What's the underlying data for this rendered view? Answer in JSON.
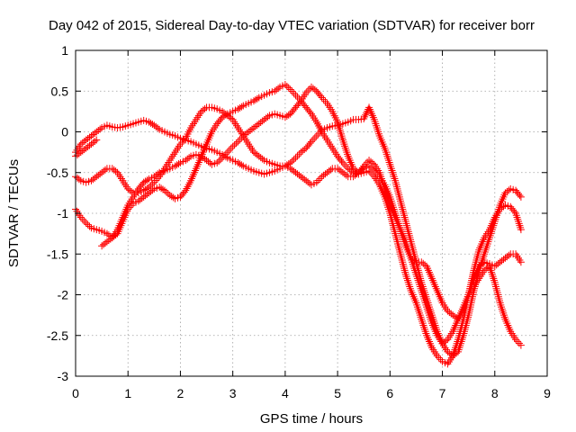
{
  "chart_data": {
    "type": "scatter",
    "title": "Day 042 of 2015, Sidereal Day-to-day VTEC variation (SDTVAR) for receiver borr",
    "xlabel": "GPS time / hours",
    "ylabel": "SDTVAR / TECUs",
    "xlim": [
      0,
      9
    ],
    "ylim": [
      -3,
      1
    ],
    "xticks": [
      "0",
      "1",
      "2",
      "3",
      "4",
      "5",
      "6",
      "7",
      "8",
      "9"
    ],
    "yticks": [
      "1",
      "0.5",
      "0",
      "-0.5",
      "-1",
      "-1.5",
      "-2",
      "-2.5",
      "-3"
    ],
    "grid": true,
    "marker": "+",
    "marker_color": "#ff0000",
    "series": [
      {
        "x": [
          0.0,
          0.1,
          0.2,
          0.3,
          0.4,
          0.5,
          0.6,
          0.7,
          0.8,
          0.9,
          1.0,
          1.1,
          1.2,
          1.3,
          1.4,
          1.5,
          1.6,
          1.7,
          1.8,
          1.9,
          2.0,
          2.1,
          2.2,
          2.3,
          2.4,
          2.5,
          2.6,
          2.7,
          2.8,
          2.9,
          3.0,
          3.1,
          3.2,
          3.3,
          3.4,
          3.5,
          3.6,
          3.7,
          3.8,
          3.9,
          4.0,
          4.1,
          4.2,
          4.3,
          4.4,
          4.5,
          4.6,
          4.7,
          4.8,
          4.9,
          5.0,
          5.1,
          5.2,
          5.3,
          5.4,
          5.5,
          5.6,
          5.7,
          5.8,
          5.9,
          6.0,
          6.1,
          6.2,
          6.3,
          6.4,
          6.5,
          6.6,
          6.7,
          6.8,
          6.9,
          7.0,
          7.1,
          7.2,
          7.3,
          7.4,
          7.5,
          7.6,
          7.7,
          7.8,
          7.9,
          8.0,
          8.1,
          8.2,
          8.3,
          8.4,
          8.5
        ],
        "y": [
          -0.25,
          -0.15,
          -0.1,
          -0.05,
          0.0,
          0.05,
          0.08,
          0.06,
          0.05,
          0.06,
          0.08,
          0.1,
          0.12,
          0.14,
          0.12,
          0.08,
          0.03,
          0.0,
          -0.03,
          -0.05,
          -0.08,
          -0.1,
          -0.12,
          -0.15,
          -0.18,
          -0.2,
          -0.22,
          -0.25,
          -0.28,
          -0.32,
          -0.35,
          -0.38,
          -0.42,
          -0.45,
          -0.48,
          -0.5,
          -0.52,
          -0.5,
          -0.48,
          -0.45,
          -0.42,
          -0.45,
          -0.5,
          -0.55,
          -0.6,
          -0.65,
          -0.62,
          -0.55,
          -0.5,
          -0.45,
          -0.45,
          -0.5,
          -0.55,
          -0.55,
          -0.5,
          -0.45,
          -0.42,
          -0.48,
          -0.55,
          -0.65,
          -0.8,
          -1.0,
          -1.2,
          -1.4,
          -1.55,
          -1.6,
          -1.6,
          -1.65,
          -1.8,
          -1.95,
          -2.1,
          -2.2,
          -2.25,
          -2.3,
          -2.2,
          -2.0,
          -1.8,
          -1.65,
          -1.6,
          -1.62,
          -1.65,
          -1.6,
          -1.55,
          -1.5,
          -1.5,
          -1.6
        ]
      },
      {
        "x": [
          0.0,
          0.1,
          0.2,
          0.3,
          0.4,
          0.5,
          0.6,
          0.7,
          0.8,
          0.9,
          1.0,
          1.1,
          1.2,
          1.3,
          1.4,
          1.5,
          1.6,
          1.7,
          1.8,
          1.9,
          2.0,
          2.1,
          2.2,
          2.3,
          2.4,
          2.5,
          2.6,
          2.7,
          2.8,
          2.9,
          3.0,
          3.1,
          3.2,
          3.3,
          3.4,
          3.5,
          3.6,
          3.7,
          3.8,
          3.9,
          4.0,
          4.1,
          4.2,
          4.3,
          4.4,
          4.5,
          4.6,
          4.7,
          4.8,
          4.9,
          5.0,
          5.1,
          5.2,
          5.3,
          5.4,
          5.5,
          5.6,
          5.7,
          5.8,
          5.9,
          6.0,
          6.1,
          6.2,
          6.3,
          6.4,
          6.5,
          6.6,
          6.7,
          6.8,
          6.9,
          7.0,
          7.1,
          7.2,
          7.3,
          7.4,
          7.5,
          7.6,
          7.7,
          7.8,
          7.9,
          8.0,
          8.1,
          8.2,
          8.3,
          8.4,
          8.5
        ],
        "y": [
          -0.95,
          -1.05,
          -1.12,
          -1.18,
          -1.2,
          -1.22,
          -1.25,
          -1.3,
          -1.25,
          -1.1,
          -0.95,
          -0.88,
          -0.85,
          -0.8,
          -0.75,
          -0.7,
          -0.68,
          -0.72,
          -0.78,
          -0.82,
          -0.8,
          -0.72,
          -0.6,
          -0.45,
          -0.3,
          -0.15,
          0.0,
          0.1,
          0.18,
          0.22,
          0.25,
          0.28,
          0.32,
          0.35,
          0.38,
          0.42,
          0.45,
          0.48,
          0.5,
          0.55,
          0.58,
          0.52,
          0.45,
          0.38,
          0.3,
          0.22,
          0.12,
          0.0,
          -0.1,
          -0.2,
          -0.3,
          -0.38,
          -0.45,
          -0.5,
          -0.52,
          -0.5,
          -0.48,
          -0.55,
          -0.65,
          -0.8,
          -1.0,
          -1.25,
          -1.5,
          -1.75,
          -1.95,
          -2.1,
          -2.3,
          -2.5,
          -2.65,
          -2.75,
          -2.82,
          -2.85,
          -2.75,
          -2.55,
          -2.3,
          -2.0,
          -1.7,
          -1.45,
          -1.3,
          -1.2,
          -1.05,
          -0.95,
          -0.9,
          -0.92,
          -1.0,
          -1.2
        ]
      },
      {
        "x": [
          0.0,
          0.1,
          0.2,
          0.3,
          0.4,
          0.5,
          0.6,
          0.7,
          0.8,
          0.9,
          1.0,
          1.1,
          1.2,
          1.3,
          1.4,
          1.5,
          1.6,
          1.7,
          1.8,
          1.9,
          2.0,
          2.1,
          2.2,
          2.3,
          2.4,
          2.5,
          2.6,
          2.7,
          2.8,
          2.9,
          3.0,
          3.1,
          3.2,
          3.3,
          3.4,
          3.5,
          3.6,
          3.7,
          3.8,
          3.9,
          4.0,
          4.1,
          4.2,
          4.3,
          4.4,
          4.5,
          4.6,
          4.7,
          4.8,
          4.9,
          5.0,
          5.1,
          5.2,
          5.3,
          5.4,
          5.5,
          5.6,
          5.7,
          5.8,
          5.9,
          6.0,
          6.1,
          6.2,
          6.3,
          6.4,
          6.5,
          6.6,
          6.7,
          6.8,
          6.9,
          7.0,
          7.1,
          7.2,
          7.3,
          7.4,
          7.5,
          7.6,
          7.7,
          7.8,
          7.9,
          8.0,
          8.1,
          8.2,
          8.3,
          8.4,
          8.5
        ],
        "y": [
          -0.55,
          -0.6,
          -0.62,
          -0.6,
          -0.55,
          -0.5,
          -0.45,
          -0.45,
          -0.5,
          -0.6,
          -0.7,
          -0.75,
          -0.75,
          -0.72,
          -0.68,
          -0.62,
          -0.55,
          -0.45,
          -0.35,
          -0.25,
          -0.15,
          -0.08,
          0.05,
          0.15,
          0.25,
          0.3,
          0.3,
          0.28,
          0.25,
          0.2,
          0.15,
          0.05,
          -0.05,
          -0.15,
          -0.25,
          -0.3,
          -0.35,
          -0.38,
          -0.4,
          -0.42,
          -0.42,
          -0.38,
          -0.32,
          -0.25,
          -0.2,
          -0.12,
          -0.05,
          0.02,
          0.05,
          0.07,
          0.08,
          0.1,
          0.12,
          0.15,
          0.15,
          0.16,
          0.3,
          0.15,
          -0.05,
          -0.2,
          -0.4,
          -0.6,
          -0.85,
          -1.1,
          -1.35,
          -1.6,
          -1.85,
          -2.05,
          -2.25,
          -2.45,
          -2.6,
          -2.7,
          -2.75,
          -2.7,
          -2.5,
          -2.25,
          -1.95,
          -1.7,
          -1.5,
          -1.3,
          -1.1,
          -0.9,
          -0.75,
          -0.7,
          -0.72,
          -0.8
        ]
      },
      {
        "x": [
          0.0,
          0.1,
          0.2,
          0.3,
          0.4,
          0.5,
          0.6,
          0.7,
          0.8,
          0.9,
          1.0,
          1.1,
          1.2,
          1.3,
          1.4,
          1.5,
          1.6,
          1.7,
          1.8,
          1.9,
          2.0,
          2.1,
          2.2,
          2.3,
          2.4,
          2.5,
          2.6,
          2.7,
          2.8,
          2.9,
          3.0,
          3.1,
          3.2,
          3.3,
          3.4,
          3.5,
          3.6,
          3.7,
          3.8,
          3.9,
          4.0,
          4.1,
          4.2,
          4.3,
          4.4,
          4.5,
          4.6,
          4.7,
          4.8,
          4.9,
          5.0,
          5.1,
          5.2,
          5.3,
          5.4,
          5.5,
          5.6,
          5.7,
          5.8,
          5.9,
          6.0,
          6.1,
          6.2,
          6.3,
          6.4,
          6.5,
          6.6,
          6.7,
          6.8,
          6.9,
          7.0,
          7.1,
          7.2,
          7.3,
          7.4,
          7.5,
          7.6,
          7.7,
          7.8,
          7.9,
          8.0,
          8.1,
          8.2,
          8.3,
          8.4,
          8.5
        ],
        "y": [
          -0.3,
          -0.25,
          -0.2,
          -0.15,
          -0.1,
          -1.4,
          -1.35,
          -1.3,
          -1.2,
          -1.05,
          -0.9,
          -0.8,
          -0.7,
          -0.62,
          -0.58,
          -0.55,
          -0.5,
          -0.48,
          -0.45,
          -0.42,
          -0.38,
          -0.35,
          -0.3,
          -0.28,
          -0.3,
          -0.35,
          -0.4,
          -0.38,
          -0.32,
          -0.25,
          -0.18,
          -0.12,
          -0.05,
          0.0,
          0.05,
          0.1,
          0.15,
          0.2,
          0.22,
          0.2,
          0.18,
          0.22,
          0.3,
          0.38,
          0.48,
          0.55,
          0.5,
          0.42,
          0.35,
          0.25,
          0.12,
          -0.1,
          -0.3,
          -0.45,
          -0.5,
          -0.42,
          -0.35,
          -0.4,
          -0.5,
          -0.7,
          -0.9,
          -1.05,
          -1.2,
          -1.35,
          -1.55,
          -1.75,
          -1.95,
          -2.15,
          -2.35,
          -2.5,
          -2.6,
          -2.55,
          -2.45,
          -2.3,
          -2.15,
          -2.0,
          -1.9,
          -1.8,
          -1.7,
          -1.65,
          -1.85,
          -2.1,
          -2.3,
          -2.45,
          -2.55,
          -2.62
        ]
      }
    ]
  }
}
